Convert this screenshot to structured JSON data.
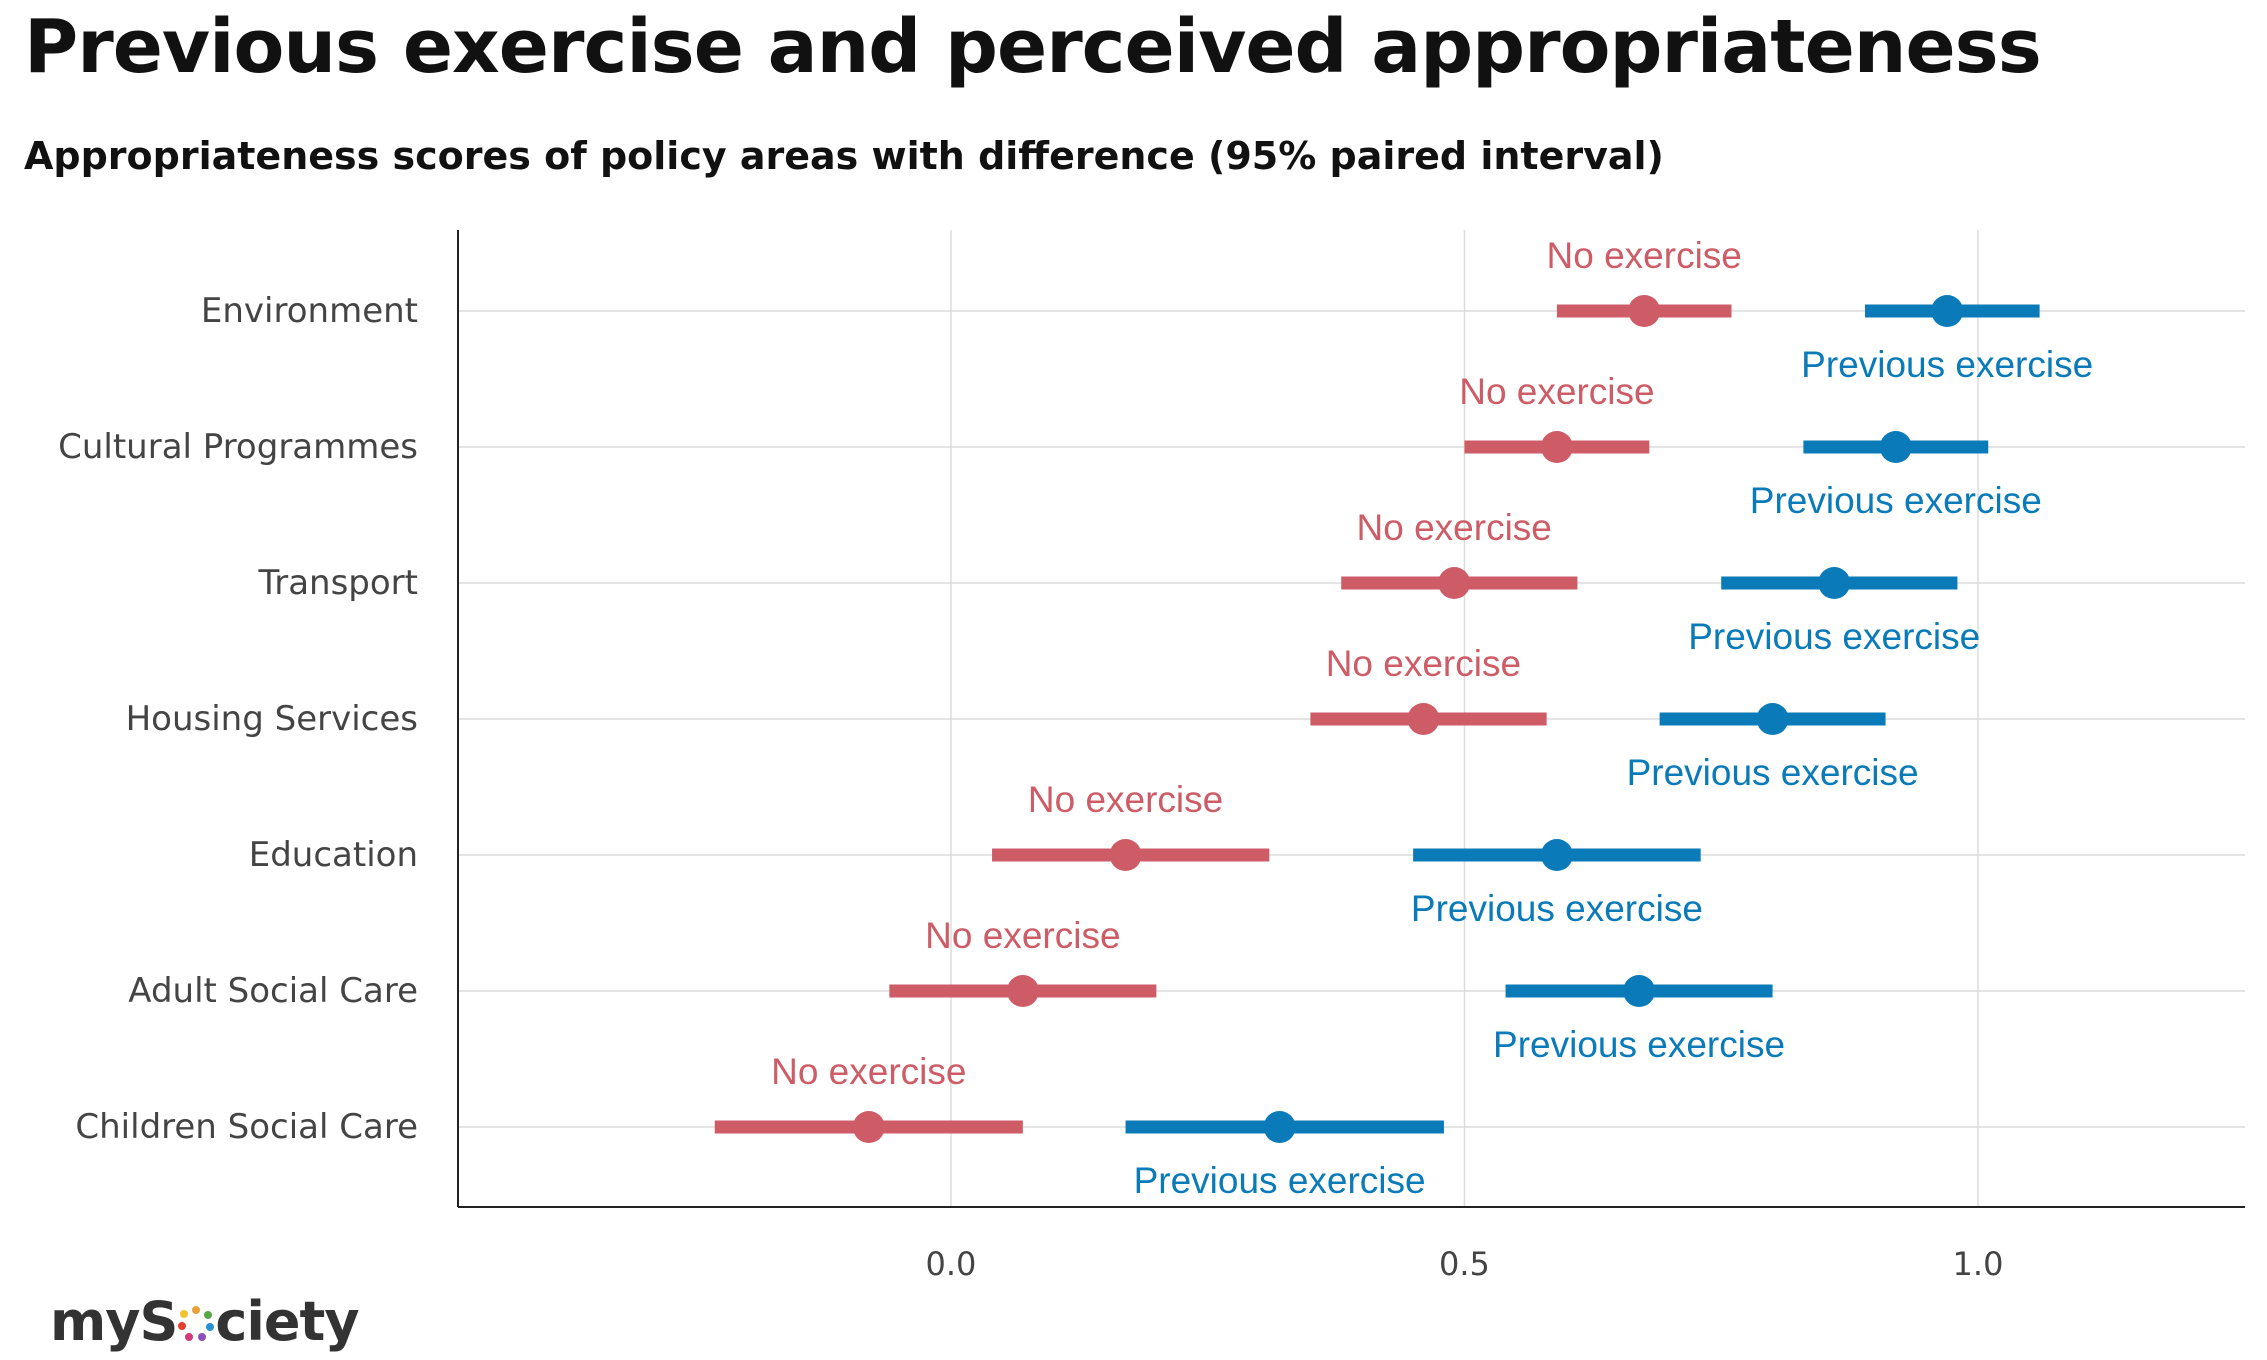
{
  "title": "Previous exercise and perceived appropriateness",
  "subtitle": "Appropriateness scores of policy areas with difference (95% paired interval)",
  "logo": {
    "text_before": "myS",
    "text_after": "ciety"
  },
  "chart_data": {
    "type": "dot-interval",
    "xlabel": "",
    "ylabel": "",
    "xlim": [
      -0.48,
      1.26
    ],
    "x_ticks": [
      0.0,
      0.5,
      1.0
    ],
    "x_tick_labels": [
      "0.0",
      "0.5",
      "1.0"
    ],
    "grid": true,
    "categories": [
      "Environment",
      "Cultural Programmes",
      "Transport",
      "Housing Services",
      "Education",
      "Adult Social Care",
      "Children Social Care"
    ],
    "series": [
      {
        "name": "No exercise",
        "color": "#cd5c66",
        "points": [
          {
            "estimate": 0.675,
            "low": 0.59,
            "high": 0.76
          },
          {
            "estimate": 0.59,
            "low": 0.5,
            "high": 0.68
          },
          {
            "estimate": 0.49,
            "low": 0.38,
            "high": 0.61
          },
          {
            "estimate": 0.46,
            "low": 0.35,
            "high": 0.58
          },
          {
            "estimate": 0.17,
            "low": 0.04,
            "high": 0.31
          },
          {
            "estimate": 0.07,
            "low": -0.06,
            "high": 0.2
          },
          {
            "estimate": -0.08,
            "low": -0.23,
            "high": 0.07
          }
        ]
      },
      {
        "name": "Previous exercise",
        "color": "#0a7ab8",
        "points": [
          {
            "estimate": 0.97,
            "low": 0.89,
            "high": 1.06
          },
          {
            "estimate": 0.92,
            "low": 0.83,
            "high": 1.01
          },
          {
            "estimate": 0.86,
            "low": 0.75,
            "high": 0.98
          },
          {
            "estimate": 0.8,
            "low": 0.69,
            "high": 0.91
          },
          {
            "estimate": 0.59,
            "low": 0.45,
            "high": 0.73
          },
          {
            "estimate": 0.67,
            "low": 0.54,
            "high": 0.8
          },
          {
            "estimate": 0.32,
            "low": 0.17,
            "high": 0.48
          }
        ]
      }
    ]
  }
}
